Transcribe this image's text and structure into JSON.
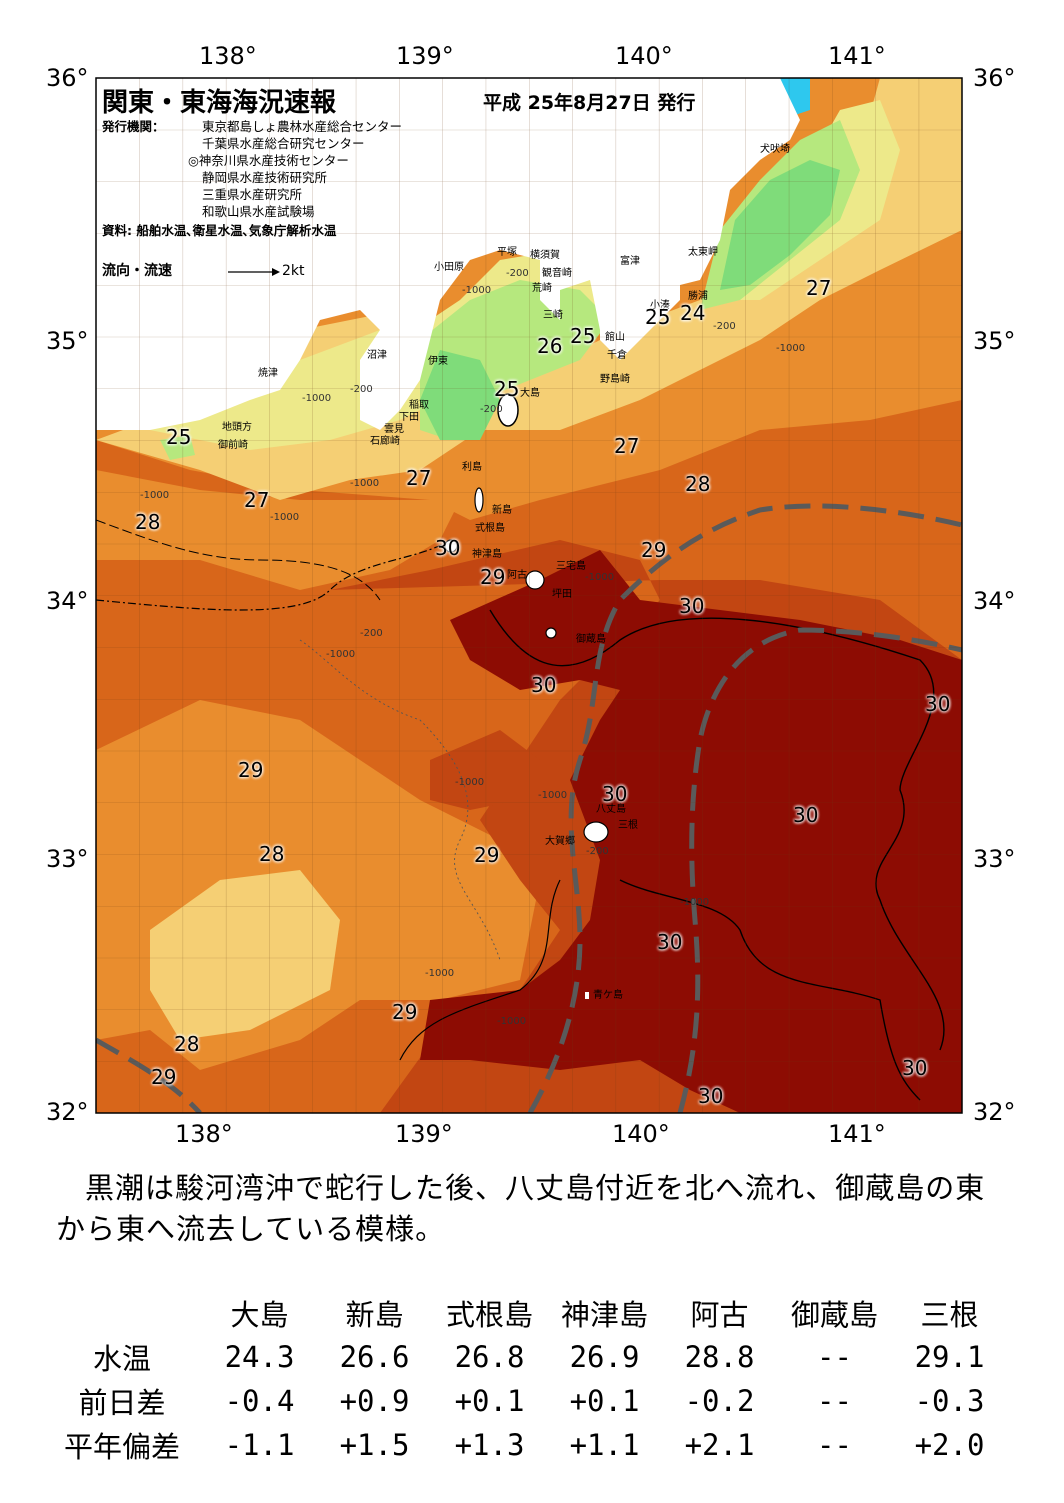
{
  "header": {
    "title": "関東・東海海況速報",
    "date": "平成 25年8月27日 発行",
    "org_label": "発行機関：",
    "orgs": [
      "東京都島しょ農林水産総合センター",
      "千葉県水産総合研究センター",
      "◎神奈川県水産技術センター",
      "静岡県水産技術研究所",
      "三重県水産研究所",
      "和歌山県水産試験場"
    ],
    "source": "資料: 船舶水温､衛星水温､気象庁解析水温",
    "legend_flow": "流向・流速",
    "legend_speed": "2kt"
  },
  "axes": {
    "lon_top": [
      "138°",
      "139°",
      "140°",
      "141°"
    ],
    "lon_bottom": [
      "138°",
      "139°",
      "140°",
      "141°"
    ],
    "lat_left": [
      "36°",
      "35°",
      "34°",
      "33°",
      "32°"
    ],
    "lat_right": [
      "36°",
      "35°",
      "34°",
      "33°",
      "32°"
    ]
  },
  "places": [
    "犬吠埼",
    "太東岬",
    "勝浦",
    "小湊",
    "富津",
    "横須賀",
    "観音崎",
    "平塚",
    "小田原",
    "荒崎",
    "三崎",
    "館山",
    "千倉",
    "野島崎",
    "沼津",
    "伊東",
    "焼津",
    "稲取",
    "下田",
    "雲見",
    "石廊崎",
    "大島",
    "地頭方",
    "御前崎",
    "利島",
    "新島",
    "式根島",
    "神津島",
    "三宅島",
    "阿古",
    "坪田",
    "御蔵島",
    "八丈島",
    "三根",
    "大賀郷",
    "青ケ島"
  ],
  "isotherms": [
    "25",
    "24",
    "25",
    "26",
    "25",
    "27",
    "27",
    "27",
    "25",
    "28",
    "28",
    "27",
    "29",
    "29",
    "30",
    "30",
    "30",
    "29",
    "29",
    "28",
    "29",
    "30",
    "30",
    "30",
    "28",
    "29",
    "30",
    "30",
    "30"
  ],
  "depth_labels": [
    "-200",
    "-1000",
    "-200",
    "-1000",
    "-200",
    "-1000",
    "-200",
    "-1000",
    "-1000",
    "-1000",
    "-1000",
    "-200",
    "-1000",
    "-1000",
    "-1000",
    "-1000",
    "-200",
    "-1000",
    "-1000"
  ],
  "colors": {
    "c24": "#7fdc7a",
    "c25": "#b6e87e",
    "c26": "#ede98a",
    "c27": "#f5cf74",
    "c28": "#e98d2e",
    "c29": "#d8661a",
    "c295": "#c24612",
    "c30": "#8d0c03",
    "kuroshio": "#5a5a5a",
    "land": "#ffffff",
    "sea_near": "#2ec8ee"
  },
  "description": "黒潮は駿河湾沖で蛇行した後、八丈島付近を北へ流れ、御蔵島の東から東へ流去している模様。",
  "table": {
    "stations": [
      "大島",
      "新島",
      "式根島",
      "神津島",
      "阿古",
      "御蔵島",
      "三根"
    ],
    "rows": [
      {
        "label": "水温",
        "values": [
          "24.3",
          "26.6",
          "26.8",
          "26.9",
          "28.8",
          "--",
          "29.1"
        ]
      },
      {
        "label": "前日差",
        "values": [
          "-0.4",
          "+0.9",
          "+0.1",
          "+0.1",
          "-0.2",
          "--",
          "-0.3"
        ]
      },
      {
        "label": "平年偏差",
        "values": [
          "-1.1",
          "+1.5",
          "+1.3",
          "+1.1",
          "+2.1",
          "--",
          "+2.0"
        ]
      }
    ]
  }
}
